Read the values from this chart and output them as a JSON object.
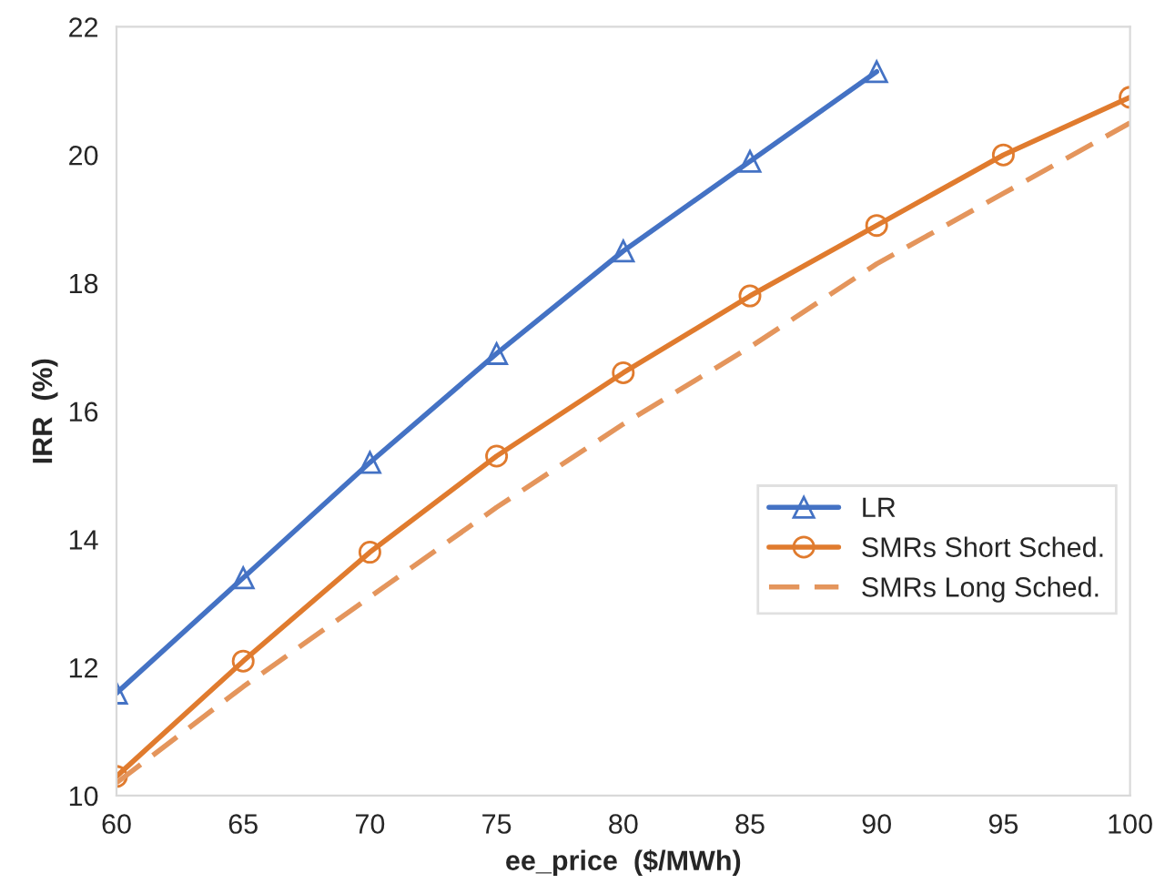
{
  "chart_data": {
    "type": "line",
    "xlabel": "ee_price  ($/MWh)",
    "ylabel": "IRR  (%)",
    "x": [
      60,
      65,
      70,
      75,
      80,
      85,
      90,
      95,
      100
    ],
    "series": [
      {
        "name": "LR",
        "color": "#4472c4",
        "marker": "triangle",
        "line_style": "solid",
        "values": [
          11.6,
          13.4,
          15.2,
          16.9,
          18.5,
          19.9,
          21.3,
          null,
          null
        ]
      },
      {
        "name": "SMRs Short Sched.",
        "color": "#e07b2e",
        "marker": "circle",
        "line_style": "solid",
        "values": [
          10.3,
          12.1,
          13.8,
          15.3,
          16.6,
          17.8,
          18.9,
          20.0,
          20.9
        ]
      },
      {
        "name": "SMRs Long Sched.",
        "color": "#e4955c",
        "marker": "none",
        "line_style": "dashed",
        "values": [
          10.2,
          11.7,
          13.1,
          14.5,
          15.8,
          17.0,
          18.3,
          19.4,
          20.5
        ]
      }
    ],
    "xlim": [
      60,
      100
    ],
    "xticks": [
      60,
      65,
      70,
      75,
      80,
      85,
      90,
      95,
      100
    ],
    "ylim": [
      10,
      22
    ],
    "yticks": [
      10,
      12,
      14,
      16,
      18,
      20,
      22
    ],
    "grid": false,
    "legend": "right"
  }
}
